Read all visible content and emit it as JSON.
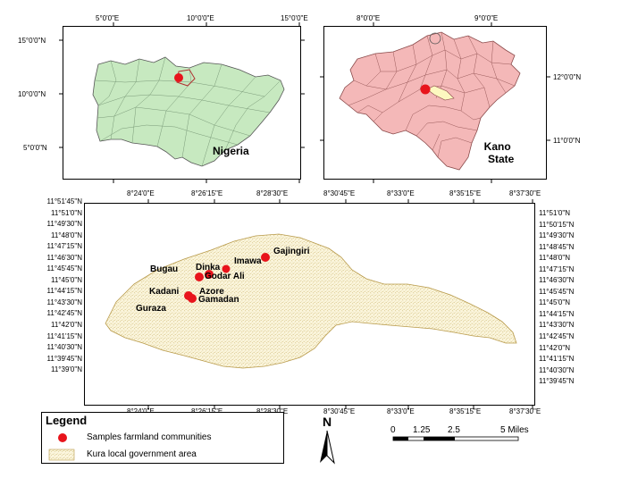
{
  "nigeria_map": {
    "label": "Nigeria",
    "top_ticks": [
      "5°0'0\"E",
      "10°0'0\"E",
      "15°0'0\"E"
    ],
    "left_ticks": [
      "15°0'0\"N",
      "10°0'0\"N",
      "5°0'0\"N"
    ]
  },
  "kano_map": {
    "label_line1": "Kano",
    "label_line2": "State",
    "top_ticks": [
      "8°0'0\"E",
      "9°0'0\"E"
    ],
    "right_ticks": [
      "12°0'0\"N",
      "11°0'0\"N"
    ]
  },
  "kura_map": {
    "top_ticks": [
      "8°24'0\"E",
      "8°26'15\"E",
      "8°28'30\"E",
      "8°30'45\"E",
      "8°33'0\"E",
      "8°35'15\"E",
      "8°37'30\"E"
    ],
    "bottom_ticks": [
      "8°24'0\"E",
      "8°26'15\"E",
      "8°28'30\"E",
      "8°30'45\"E",
      "8°33'0\"E",
      "8°35'15\"E",
      "8°37'30\"E"
    ],
    "left_ticks": [
      "11°51'45\"N",
      "11°51'0\"N",
      "11°49'30\"N",
      "11°48'0\"N",
      "11°47'15\"N",
      "11°46'30\"N",
      "11°45'45\"N",
      "11°45'0\"N",
      "11°44'15\"N",
      "11°43'30\"N",
      "11°42'45\"N",
      "11°42'0\"N",
      "11°41'15\"N",
      "11°40'30\"N",
      "11°39'45\"N",
      "11°39'0\"N"
    ],
    "right_ticks": [
      "11°51'0\"N",
      "11°50'15\"N",
      "11°49'30\"N",
      "11°48'45\"N",
      "11°48'0\"N",
      "11°47'15\"N",
      "11°46'30\"N",
      "11°45'45\"N",
      "11°45'0\"N",
      "11°44'15\"N",
      "11°43'30\"N",
      "11°42'45\"N",
      "11°42'0\"N",
      "11°41'15\"N",
      "11°40'30\"N",
      "11°39'45\"N"
    ],
    "communities": [
      "Gajingiri",
      "Imawa",
      "Bugau",
      "Dinka",
      "Godar Ali",
      "Kadani",
      "Azore",
      "Gamadan",
      "Guraza"
    ]
  },
  "legend": {
    "title": "Legend",
    "item1": "Samples farmland communities",
    "item2": "Kura local government area"
  },
  "north_arrow": {
    "label": "N"
  },
  "scale_bar": {
    "labels": [
      "0",
      "1.25",
      "2.5",
      "5 Miles"
    ]
  },
  "colors": {
    "nigeria_fill": "#c7e9c0",
    "kano_fill": "#f4b8b8",
    "kura_fill": "#fbf5dc",
    "kura_stipple": "#c8b46a",
    "sample_point": "#e8141c"
  }
}
